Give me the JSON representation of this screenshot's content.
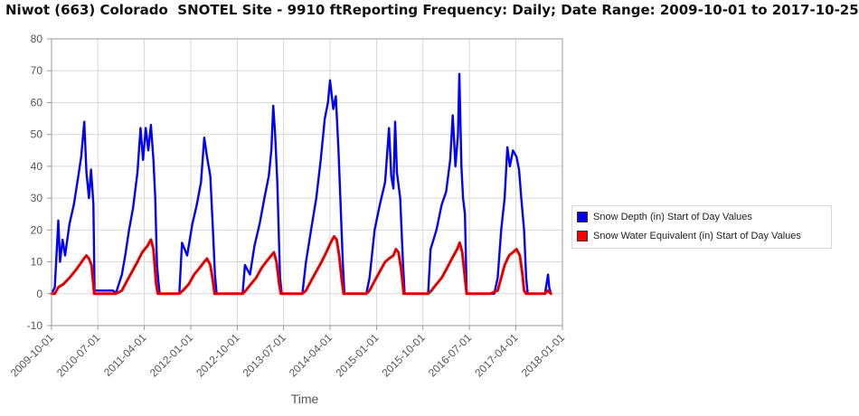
{
  "title": "Niwot (663) Colorado  SNOTEL Site - 9910 ftReporting Frequency: Daily; Date Range: 2009-10-01 to 2017-10-25",
  "chart_data": {
    "type": "line",
    "title": "Niwot (663) Colorado  SNOTEL Site - 9910 ftReporting Frequency: Daily; Date Range: 2009-10-01 to 2017-10-25",
    "xlabel": "Time",
    "ylabel": "",
    "ylim": [
      -10,
      80
    ],
    "yticks": [
      "-10",
      "0",
      "10",
      "20",
      "30",
      "40",
      "50",
      "60",
      "70",
      "80"
    ],
    "xlim": [
      "2009-10-01",
      "2018-01-01"
    ],
    "xticks": [
      "2009-10-01",
      "2010-07-01",
      "2011-04-01",
      "2012-01-01",
      "2012-10-01",
      "2013-07-01",
      "2014-04-01",
      "2015-01-01",
      "2015-10-01",
      "2016-07-01",
      "2017-04-01",
      "2018-01-01"
    ],
    "grid": true,
    "legend_position": "right",
    "series": [
      {
        "name": "Snow Depth (in) Start of Day Values",
        "color": "#0000ff",
        "points": [
          [
            "2009-10-01",
            0
          ],
          [
            "2009-10-20",
            2
          ],
          [
            "2009-11-10",
            23
          ],
          [
            "2009-11-20",
            10
          ],
          [
            "2009-12-05",
            17
          ],
          [
            "2009-12-20",
            12
          ],
          [
            "2010-01-15",
            22
          ],
          [
            "2010-02-10",
            28
          ],
          [
            "2010-03-05",
            36
          ],
          [
            "2010-03-25",
            43
          ],
          [
            "2010-04-12",
            54
          ],
          [
            "2010-04-25",
            38
          ],
          [
            "2010-05-10",
            30
          ],
          [
            "2010-05-22",
            39
          ],
          [
            "2010-06-05",
            28
          ],
          [
            "2010-06-12",
            1
          ],
          [
            "2010-08-01",
            1
          ],
          [
            "2010-09-30",
            1
          ],
          [
            "2010-10-15",
            0
          ],
          [
            "2010-11-20",
            6
          ],
          [
            "2010-12-10",
            12
          ],
          [
            "2011-01-01",
            20
          ],
          [
            "2011-01-25",
            27
          ],
          [
            "2011-02-20",
            38
          ],
          [
            "2011-03-10",
            52
          ],
          [
            "2011-03-25",
            42
          ],
          [
            "2011-04-10",
            52
          ],
          [
            "2011-04-25",
            45
          ],
          [
            "2011-05-10",
            53
          ],
          [
            "2011-05-25",
            42
          ],
          [
            "2011-06-05",
            30
          ],
          [
            "2011-06-15",
            9
          ],
          [
            "2011-06-25",
            3
          ],
          [
            "2011-07-01",
            0
          ],
          [
            "2011-10-25",
            0
          ],
          [
            "2011-11-10",
            16
          ],
          [
            "2011-12-10",
            12
          ],
          [
            "2012-01-10",
            22
          ],
          [
            "2012-02-05",
            28
          ],
          [
            "2012-03-01",
            35
          ],
          [
            "2012-03-20",
            49
          ],
          [
            "2012-04-05",
            43
          ],
          [
            "2012-04-25",
            37
          ],
          [
            "2012-05-10",
            20
          ],
          [
            "2012-05-22",
            6
          ],
          [
            "2012-06-01",
            0
          ],
          [
            "2012-11-01",
            0
          ],
          [
            "2012-11-15",
            9
          ],
          [
            "2012-12-15",
            6
          ],
          [
            "2013-01-10",
            15
          ],
          [
            "2013-02-10",
            22
          ],
          [
            "2013-03-10",
            30
          ],
          [
            "2013-04-05",
            37
          ],
          [
            "2013-04-20",
            45
          ],
          [
            "2013-05-01",
            59
          ],
          [
            "2013-05-12",
            50
          ],
          [
            "2013-05-25",
            35
          ],
          [
            "2013-06-10",
            5
          ],
          [
            "2013-06-20",
            0
          ],
          [
            "2013-10-20",
            0
          ],
          [
            "2013-11-10",
            10
          ],
          [
            "2013-12-10",
            20
          ],
          [
            "2014-01-10",
            30
          ],
          [
            "2014-02-05",
            42
          ],
          [
            "2014-03-01",
            55
          ],
          [
            "2014-03-20",
            60
          ],
          [
            "2014-04-01",
            67
          ],
          [
            "2014-04-20",
            58
          ],
          [
            "2014-05-05",
            62
          ],
          [
            "2014-05-20",
            46
          ],
          [
            "2014-06-01",
            30
          ],
          [
            "2014-06-15",
            10
          ],
          [
            "2014-06-25",
            0
          ],
          [
            "2014-11-01",
            0
          ],
          [
            "2014-11-20",
            5
          ],
          [
            "2014-12-20",
            20
          ],
          [
            "2015-01-20",
            28
          ],
          [
            "2015-02-20",
            35
          ],
          [
            "2015-03-15",
            52
          ],
          [
            "2015-03-28",
            37
          ],
          [
            "2015-04-10",
            33
          ],
          [
            "2015-04-20",
            54
          ],
          [
            "2015-05-01",
            38
          ],
          [
            "2015-05-20",
            30
          ],
          [
            "2015-06-05",
            10
          ],
          [
            "2015-06-15",
            0
          ],
          [
            "2015-11-01",
            0
          ],
          [
            "2015-11-15",
            14
          ],
          [
            "2015-12-20",
            20
          ],
          [
            "2016-01-20",
            28
          ],
          [
            "2016-02-15",
            32
          ],
          [
            "2016-03-10",
            42
          ],
          [
            "2016-03-25",
            56
          ],
          [
            "2016-04-10",
            40
          ],
          [
            "2016-04-25",
            50
          ],
          [
            "2016-05-03",
            69
          ],
          [
            "2016-05-15",
            40
          ],
          [
            "2016-05-25",
            30
          ],
          [
            "2016-06-05",
            25
          ],
          [
            "2016-06-15",
            0
          ],
          [
            "2016-11-01",
            0
          ],
          [
            "2016-11-25",
            0
          ],
          [
            "2016-12-15",
            5
          ],
          [
            "2017-01-05",
            20
          ],
          [
            "2017-01-25",
            30
          ],
          [
            "2017-02-10",
            46
          ],
          [
            "2017-02-25",
            40
          ],
          [
            "2017-03-15",
            45
          ],
          [
            "2017-04-05",
            43
          ],
          [
            "2017-04-20",
            39
          ],
          [
            "2017-05-05",
            29
          ],
          [
            "2017-05-20",
            20
          ],
          [
            "2017-06-01",
            5
          ],
          [
            "2017-06-10",
            0
          ],
          [
            "2017-09-20",
            0
          ],
          [
            "2017-10-08",
            6
          ],
          [
            "2017-10-15",
            2
          ],
          [
            "2017-10-25",
            0
          ]
        ]
      },
      {
        "name": "Snow Water Equivalent (in) Start of Day Values",
        "color": "#ff0000",
        "points": [
          [
            "2009-10-01",
            0
          ],
          [
            "2009-10-20",
            0
          ],
          [
            "2009-11-10",
            2
          ],
          [
            "2009-12-10",
            3
          ],
          [
            "2010-01-15",
            5
          ],
          [
            "2010-02-15",
            7
          ],
          [
            "2010-03-15",
            9
          ],
          [
            "2010-04-10",
            11
          ],
          [
            "2010-04-25",
            12
          ],
          [
            "2010-05-10",
            11
          ],
          [
            "2010-05-25",
            9
          ],
          [
            "2010-06-10",
            0
          ],
          [
            "2010-10-15",
            0
          ],
          [
            "2010-11-20",
            1
          ],
          [
            "2010-12-20",
            4
          ],
          [
            "2011-01-20",
            7
          ],
          [
            "2011-02-20",
            10
          ],
          [
            "2011-03-20",
            13
          ],
          [
            "2011-04-20",
            15
          ],
          [
            "2011-05-10",
            17
          ],
          [
            "2011-05-25",
            14
          ],
          [
            "2011-06-10",
            3
          ],
          [
            "2011-06-20",
            0
          ],
          [
            "2011-10-25",
            0
          ],
          [
            "2011-11-15",
            1
          ],
          [
            "2011-12-20",
            3
          ],
          [
            "2012-01-20",
            6
          ],
          [
            "2012-02-20",
            8
          ],
          [
            "2012-03-20",
            10
          ],
          [
            "2012-04-05",
            11
          ],
          [
            "2012-04-25",
            9
          ],
          [
            "2012-05-10",
            4
          ],
          [
            "2012-05-20",
            0
          ],
          [
            "2012-11-01",
            0
          ],
          [
            "2012-11-20",
            1
          ],
          [
            "2012-12-20",
            3
          ],
          [
            "2013-01-20",
            5
          ],
          [
            "2013-02-20",
            8
          ],
          [
            "2013-03-20",
            10
          ],
          [
            "2013-04-20",
            12
          ],
          [
            "2013-05-05",
            13
          ],
          [
            "2013-05-20",
            10
          ],
          [
            "2013-06-05",
            3
          ],
          [
            "2013-06-15",
            0
          ],
          [
            "2013-10-20",
            0
          ],
          [
            "2013-11-10",
            1
          ],
          [
            "2013-12-10",
            4
          ],
          [
            "2014-01-10",
            7
          ],
          [
            "2014-02-10",
            10
          ],
          [
            "2014-03-10",
            13
          ],
          [
            "2014-04-05",
            16
          ],
          [
            "2014-04-25",
            18
          ],
          [
            "2014-05-10",
            17
          ],
          [
            "2014-05-25",
            12
          ],
          [
            "2014-06-10",
            4
          ],
          [
            "2014-06-20",
            0
          ],
          [
            "2014-11-01",
            0
          ],
          [
            "2014-11-20",
            1
          ],
          [
            "2014-12-20",
            4
          ],
          [
            "2015-01-20",
            7
          ],
          [
            "2015-02-20",
            10
          ],
          [
            "2015-03-15",
            11
          ],
          [
            "2015-04-10",
            12
          ],
          [
            "2015-04-25",
            14
          ],
          [
            "2015-05-10",
            13
          ],
          [
            "2015-05-25",
            8
          ],
          [
            "2015-06-10",
            0
          ],
          [
            "2015-11-01",
            0
          ],
          [
            "2015-11-20",
            1
          ],
          [
            "2015-12-20",
            3
          ],
          [
            "2016-01-20",
            5
          ],
          [
            "2016-02-20",
            8
          ],
          [
            "2016-03-20",
            11
          ],
          [
            "2016-04-20",
            14
          ],
          [
            "2016-05-05",
            16
          ],
          [
            "2016-05-20",
            13
          ],
          [
            "2016-06-05",
            5
          ],
          [
            "2016-06-15",
            0
          ],
          [
            "2016-11-01",
            0
          ],
          [
            "2016-12-15",
            1
          ],
          [
            "2017-01-05",
            5
          ],
          [
            "2017-01-25",
            9
          ],
          [
            "2017-02-20",
            12
          ],
          [
            "2017-03-15",
            13
          ],
          [
            "2017-04-05",
            14
          ],
          [
            "2017-04-25",
            12
          ],
          [
            "2017-05-10",
            6
          ],
          [
            "2017-05-20",
            1
          ],
          [
            "2017-06-01",
            0
          ],
          [
            "2017-09-20",
            0
          ],
          [
            "2017-10-05",
            1
          ],
          [
            "2017-10-25",
            0
          ]
        ]
      }
    ]
  }
}
